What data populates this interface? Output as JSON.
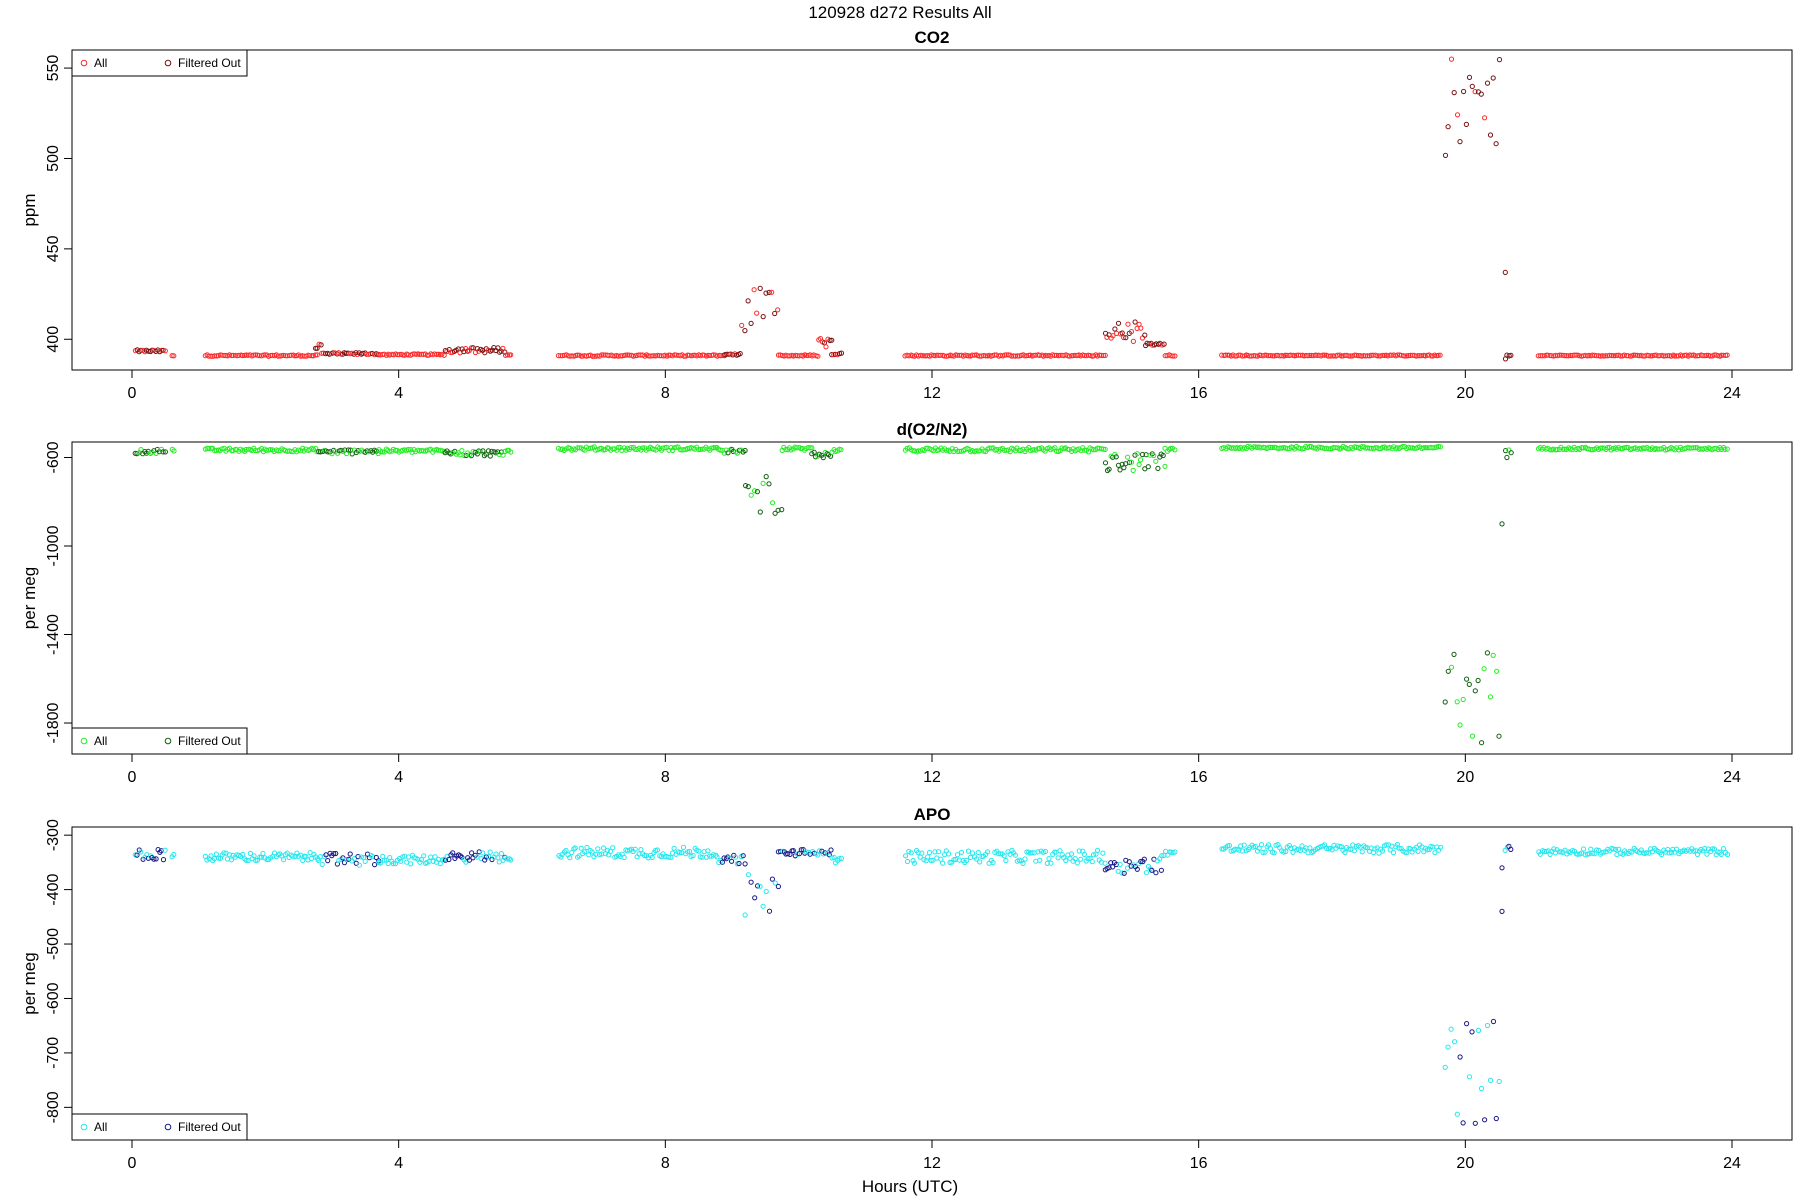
{
  "figure": {
    "title": "120928   d272   Results All",
    "xlabel": "Hours (UTC)"
  },
  "chart_data": [
    {
      "type": "scatter",
      "title": "CO2",
      "ylabel": "ppm",
      "xlim": [
        -0.9,
        24.9
      ],
      "ylim": [
        383,
        560
      ],
      "xticks": [
        0,
        4,
        8,
        12,
        16,
        20,
        24
      ],
      "yticks": [
        400,
        450,
        500,
        550
      ],
      "legend_position": "top-left",
      "legend": [
        {
          "label": "All",
          "color": "#ff2a2a"
        },
        {
          "label": "Filtered Out",
          "color": "#7a1010"
        }
      ],
      "segments": [
        {
          "x0": 0.05,
          "x1": 0.5,
          "base": 393.5,
          "amp": 0.6,
          "filtered": true
        },
        {
          "x0": 0.6,
          "x1": 0.65,
          "base": 391.0,
          "amp": 0.3,
          "filtered": false
        },
        {
          "x0": 1.1,
          "x1": 2.8,
          "base": 391.0,
          "amp": 0.4,
          "filtered": false
        },
        {
          "x0": 2.75,
          "x1": 2.85,
          "base": 396.0,
          "amp": 2.0,
          "filtered": true
        },
        {
          "x0": 2.85,
          "x1": 3.7,
          "base": 392.0,
          "amp": 0.6,
          "filtered": true
        },
        {
          "x0": 3.7,
          "x1": 4.7,
          "base": 391.5,
          "amp": 0.4,
          "filtered": false
        },
        {
          "x0": 4.7,
          "x1": 5.6,
          "base": 394.0,
          "amp": 1.5,
          "filtered": true
        },
        {
          "x0": 5.6,
          "x1": 5.7,
          "base": 391.5,
          "amp": 0.4,
          "filtered": false
        },
        {
          "x0": 6.4,
          "x1": 8.9,
          "base": 391.0,
          "amp": 0.4,
          "filtered": false
        },
        {
          "x0": 8.9,
          "x1": 9.15,
          "base": 391.5,
          "amp": 0.6,
          "filtered": true
        },
        {
          "x0": 9.15,
          "x1": 9.7,
          "base": 415.0,
          "amp": 14.0,
          "filtered": true
        },
        {
          "x0": 9.7,
          "x1": 10.3,
          "base": 391.0,
          "amp": 0.4,
          "filtered": false
        },
        {
          "x0": 10.3,
          "x1": 10.5,
          "base": 398.0,
          "amp": 3.0,
          "filtered": true
        },
        {
          "x0": 10.5,
          "x1": 10.65,
          "base": 392.0,
          "amp": 0.5,
          "filtered": true
        },
        {
          "x0": 11.6,
          "x1": 14.6,
          "base": 391.0,
          "amp": 0.4,
          "filtered": false
        },
        {
          "x0": 14.6,
          "x1": 15.2,
          "base": 404.0,
          "amp": 6.0,
          "filtered": true
        },
        {
          "x0": 15.2,
          "x1": 15.5,
          "base": 397.0,
          "amp": 1.0,
          "filtered": true
        },
        {
          "x0": 15.5,
          "x1": 15.65,
          "base": 391.0,
          "amp": 0.4,
          "filtered": false
        },
        {
          "x0": 16.35,
          "x1": 19.65,
          "base": 391.0,
          "amp": 0.3,
          "filtered": false
        },
        {
          "x0": 19.7,
          "x1": 20.55,
          "base": 525.0,
          "amp": 30.0,
          "filtered": true
        },
        {
          "x0": 20.6,
          "x1": 20.7,
          "base": 392.0,
          "amp": 3.0,
          "filtered": true
        },
        {
          "x0": 21.1,
          "x1": 23.95,
          "base": 391.0,
          "amp": 0.3,
          "filtered": false
        }
      ],
      "outliers": [
        [
          20.6,
          437
        ]
      ]
    },
    {
      "type": "scatter",
      "title": "d(O2/N2)",
      "ylabel": "per meg",
      "xlim": [
        -0.9,
        24.9
      ],
      "ylim": [
        -1940,
        -530
      ],
      "xticks": [
        0,
        4,
        8,
        12,
        16,
        20,
        24
      ],
      "yticks": [
        -600,
        -1000,
        -1400,
        -1800
      ],
      "legend_position": "bottom-left",
      "legend": [
        {
          "label": "All",
          "color": "#22ee22"
        },
        {
          "label": "Filtered Out",
          "color": "#106010"
        }
      ],
      "segments": [
        {
          "x0": 0.05,
          "x1": 0.5,
          "base": -572,
          "amp": 12,
          "filtered": true
        },
        {
          "x0": 0.6,
          "x1": 0.65,
          "base": -566,
          "amp": 8,
          "filtered": false
        },
        {
          "x0": 1.1,
          "x1": 2.8,
          "base": -566,
          "amp": 8,
          "filtered": false
        },
        {
          "x0": 2.8,
          "x1": 3.7,
          "base": -574,
          "amp": 10,
          "filtered": true
        },
        {
          "x0": 3.7,
          "x1": 4.7,
          "base": -570,
          "amp": 8,
          "filtered": false
        },
        {
          "x0": 4.7,
          "x1": 5.6,
          "base": -580,
          "amp": 14,
          "filtered": true
        },
        {
          "x0": 5.6,
          "x1": 5.7,
          "base": -568,
          "amp": 8,
          "filtered": false
        },
        {
          "x0": 6.4,
          "x1": 8.8,
          "base": -560,
          "amp": 8,
          "filtered": false
        },
        {
          "x0": 8.8,
          "x1": 9.2,
          "base": -572,
          "amp": 10,
          "filtered": true
        },
        {
          "x0": 9.2,
          "x1": 9.75,
          "base": -770,
          "amp": 90,
          "filtered": true
        },
        {
          "x0": 9.75,
          "x1": 10.2,
          "base": -560,
          "amp": 8,
          "filtered": false
        },
        {
          "x0": 10.2,
          "x1": 10.5,
          "base": -585,
          "amp": 20,
          "filtered": true
        },
        {
          "x0": 10.5,
          "x1": 10.65,
          "base": -570,
          "amp": 8,
          "filtered": false
        },
        {
          "x0": 11.6,
          "x1": 14.6,
          "base": -565,
          "amp": 10,
          "filtered": false
        },
        {
          "x0": 14.6,
          "x1": 15.5,
          "base": -620,
          "amp": 40,
          "filtered": true
        },
        {
          "x0": 15.5,
          "x1": 15.65,
          "base": -566,
          "amp": 8,
          "filtered": false
        },
        {
          "x0": 16.35,
          "x1": 19.65,
          "base": -556,
          "amp": 6,
          "filtered": false
        },
        {
          "x0": 19.7,
          "x1": 20.55,
          "base": -1680,
          "amp": 220,
          "filtered": true
        },
        {
          "x0": 20.6,
          "x1": 20.7,
          "base": -580,
          "amp": 20,
          "filtered": true
        },
        {
          "x0": 21.1,
          "x1": 23.95,
          "base": -560,
          "amp": 6,
          "filtered": false
        }
      ],
      "outliers": [
        [
          20.55,
          -900
        ]
      ]
    },
    {
      "type": "scatter",
      "title": "APO",
      "ylabel": "per meg",
      "xlim": [
        -0.9,
        24.9
      ],
      "ylim": [
        -860,
        -285
      ],
      "xticks": [
        0,
        4,
        8,
        12,
        16,
        20,
        24
      ],
      "yticks": [
        -300,
        -400,
        -500,
        -600,
        -700,
        -800
      ],
      "legend_position": "bottom-left",
      "legend": [
        {
          "label": "All",
          "color": "#22e8ee"
        },
        {
          "label": "Filtered Out",
          "color": "#18188a"
        }
      ],
      "segments": [
        {
          "x0": 0.05,
          "x1": 0.5,
          "base": -335,
          "amp": 10,
          "filtered": true
        },
        {
          "x0": 0.6,
          "x1": 0.65,
          "base": -340,
          "amp": 8,
          "filtered": false
        },
        {
          "x0": 1.1,
          "x1": 2.8,
          "base": -340,
          "amp": 8,
          "filtered": false
        },
        {
          "x0": 2.8,
          "x1": 3.7,
          "base": -345,
          "amp": 12,
          "filtered": true
        },
        {
          "x0": 3.7,
          "x1": 4.7,
          "base": -345,
          "amp": 8,
          "filtered": false
        },
        {
          "x0": 4.7,
          "x1": 5.6,
          "base": -340,
          "amp": 10,
          "filtered": true
        },
        {
          "x0": 5.6,
          "x1": 5.7,
          "base": -342,
          "amp": 6,
          "filtered": false
        },
        {
          "x0": 6.4,
          "x1": 8.8,
          "base": -332,
          "amp": 10,
          "filtered": false
        },
        {
          "x0": 8.8,
          "x1": 9.2,
          "base": -345,
          "amp": 8,
          "filtered": true
        },
        {
          "x0": 9.2,
          "x1": 9.7,
          "base": -410,
          "amp": 40,
          "filtered": true
        },
        {
          "x0": 9.7,
          "x1": 10.5,
          "base": -332,
          "amp": 6,
          "filtered": true
        },
        {
          "x0": 10.5,
          "x1": 10.65,
          "base": -345,
          "amp": 6,
          "filtered": false
        },
        {
          "x0": 11.6,
          "x1": 14.6,
          "base": -340,
          "amp": 12,
          "filtered": false
        },
        {
          "x0": 14.6,
          "x1": 15.45,
          "base": -355,
          "amp": 15,
          "filtered": true
        },
        {
          "x0": 15.45,
          "x1": 15.65,
          "base": -332,
          "amp": 6,
          "filtered": false
        },
        {
          "x0": 16.35,
          "x1": 19.65,
          "base": -325,
          "amp": 8,
          "filtered": false
        },
        {
          "x0": 19.7,
          "x1": 20.55,
          "base": -730,
          "amp": 100,
          "filtered": true
        },
        {
          "x0": 20.6,
          "x1": 20.7,
          "base": -325,
          "amp": 5,
          "filtered": true
        },
        {
          "x0": 21.1,
          "x1": 23.95,
          "base": -330,
          "amp": 6,
          "filtered": false
        }
      ],
      "outliers": [
        [
          20.55,
          -440
        ],
        [
          20.55,
          -360
        ]
      ]
    }
  ]
}
